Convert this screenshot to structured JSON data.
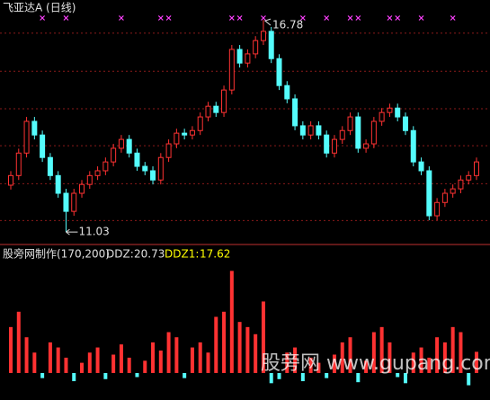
{
  "chart_data": {
    "type": "candlestick",
    "title": "飞亚达A (日线)",
    "open": [
      12.3,
      12.56,
      13.17,
      14.03,
      13.66,
      13.05,
      12.56,
      12.08,
      11.59,
      12.08,
      12.32,
      12.56,
      12.69,
      12.93,
      13.3,
      13.54,
      13.17,
      12.81,
      12.69,
      12.44,
      13.05,
      13.42,
      13.71,
      13.66,
      13.78,
      14.15,
      14.44,
      14.27,
      14.88,
      15.98,
      15.61,
      15.86,
      16.22,
      16.47,
      15.73,
      15.0,
      14.64,
      13.91,
      13.66,
      13.91,
      13.66,
      13.17,
      13.54,
      13.78,
      14.15,
      13.3,
      13.42,
      14.03,
      14.27,
      14.39,
      14.15,
      13.78,
      12.93,
      12.69,
      11.47,
      11.83,
      12.08,
      12.2,
      12.44,
      12.56
    ],
    "high": [
      12.68,
      13.29,
      14.15,
      14.15,
      13.78,
      13.17,
      12.68,
      12.2,
      12.2,
      12.44,
      12.68,
      12.81,
      13.05,
      13.42,
      13.66,
      13.66,
      13.29,
      12.93,
      12.81,
      13.17,
      13.54,
      13.83,
      13.83,
      13.9,
      14.27,
      14.56,
      14.56,
      15.0,
      16.1,
      16.1,
      15.98,
      16.34,
      16.78,
      16.59,
      15.85,
      15.12,
      14.76,
      14.03,
      14.03,
      14.03,
      13.78,
      13.66,
      13.9,
      14.27,
      14.27,
      13.54,
      14.15,
      14.39,
      14.51,
      14.51,
      14.27,
      13.9,
      13.05,
      12.81,
      11.95,
      12.2,
      12.32,
      12.56,
      12.68,
      13.05
    ],
    "low": [
      12.18,
      12.44,
      13.05,
      13.54,
      12.93,
      12.44,
      11.96,
      11.03,
      11.47,
      11.96,
      12.2,
      12.44,
      12.57,
      12.81,
      13.18,
      13.05,
      12.69,
      12.57,
      12.32,
      12.32,
      12.93,
      13.3,
      13.54,
      13.54,
      13.66,
      14.03,
      14.15,
      14.15,
      14.76,
      15.49,
      15.49,
      15.74,
      16.1,
      15.61,
      14.88,
      14.52,
      13.79,
      13.54,
      13.54,
      13.54,
      13.05,
      13.05,
      13.42,
      13.66,
      13.18,
      13.18,
      13.3,
      13.91,
      14.15,
      14.03,
      13.66,
      12.81,
      12.57,
      11.35,
      11.35,
      11.71,
      11.96,
      12.08,
      12.32,
      12.44
    ],
    "close": [
      12.56,
      13.17,
      14.03,
      13.66,
      13.05,
      12.56,
      12.08,
      11.59,
      12.08,
      12.32,
      12.56,
      12.69,
      12.93,
      13.3,
      13.54,
      13.17,
      12.81,
      12.69,
      12.44,
      13.05,
      13.42,
      13.71,
      13.66,
      13.78,
      14.15,
      14.44,
      14.27,
      14.88,
      15.98,
      15.61,
      15.86,
      16.22,
      16.47,
      15.73,
      15.0,
      14.64,
      13.91,
      13.66,
      13.91,
      13.66,
      13.17,
      13.54,
      13.78,
      14.15,
      13.3,
      13.42,
      14.03,
      14.27,
      14.39,
      14.15,
      13.78,
      12.93,
      12.69,
      11.47,
      11.83,
      12.08,
      12.2,
      12.44,
      12.56,
      12.93
    ],
    "up_color": "#ff3232",
    "down_color": "#54fcfc",
    "ylim": [
      10.74,
      17.32
    ],
    "grid_levels": [
      16.42,
      15.39,
      14.37,
      13.37,
      12.34,
      11.34
    ],
    "signals": [
      4,
      7,
      14,
      19,
      20,
      28,
      29,
      32,
      37,
      40,
      43,
      44,
      48,
      49,
      52,
      56
    ],
    "signal_color": "#ff40ff",
    "indicator": {
      "title": "股旁网制作(170,200)",
      "series": [
        {
          "name": "DDZ:",
          "values": [
            45,
            60,
            35,
            20,
            -5,
            30,
            25,
            15,
            -8,
            10,
            20,
            25,
            -6,
            18,
            28,
            15,
            -4,
            12,
            30,
            22,
            40,
            35,
            -5,
            25,
            30,
            20,
            55,
            60,
            100,
            50,
            45,
            38,
            70,
            -10,
            -6,
            20,
            25,
            -8,
            15,
            10,
            -5,
            18,
            30,
            35,
            -9,
            12,
            40,
            45,
            30,
            -4,
            -10,
            20,
            25,
            15,
            35,
            30,
            45,
            40,
            -12,
            20.73
          ],
          "color": "#ff3232",
          "negative_color": "#54fcfc"
        },
        {
          "name": "DDZ1:",
          "last": 17.62,
          "color": "#ffff00"
        }
      ],
      "ylim": [
        -15,
        110
      ]
    },
    "watermark": "股旁网 www.gupang.com"
  }
}
